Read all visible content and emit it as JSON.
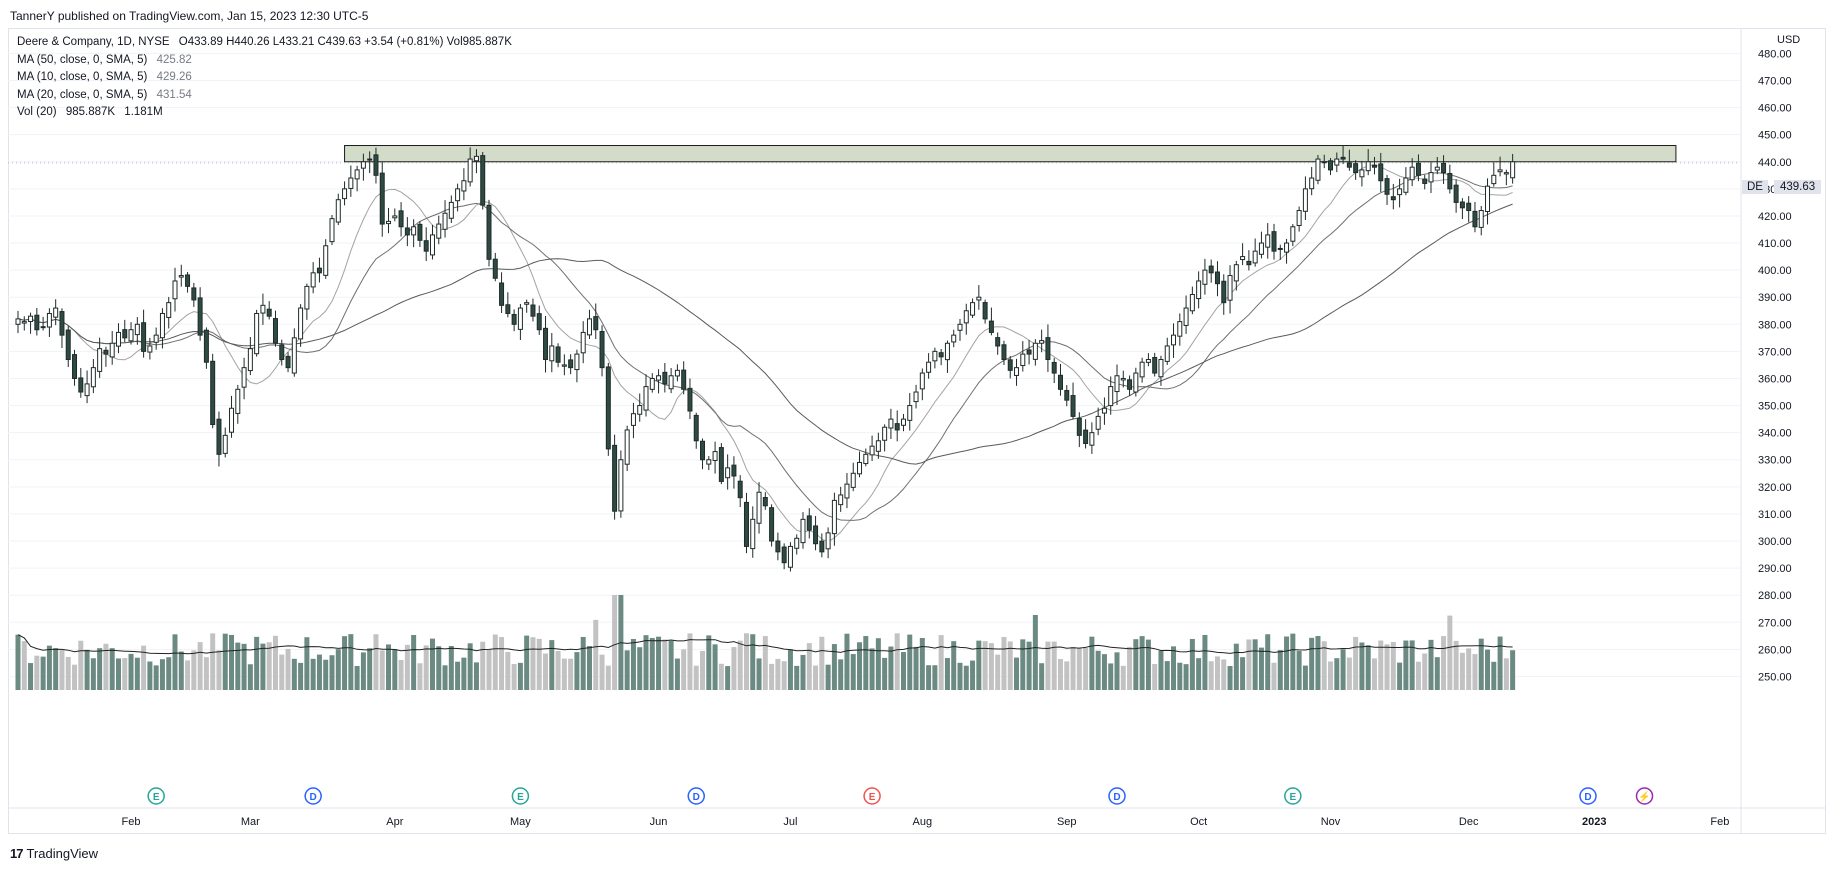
{
  "header": {
    "publisher": "TannerY published on TradingView.com, Jan 15, 2023 12:30 UTC-5"
  },
  "legend": {
    "title": "Deere & Company, 1D, NYSE",
    "ohlc": "O433.89  H440.26  L433.21  C439.63  +3.54 (+0.81%)  Vol985.887K",
    "ma50_label": "MA (50, close, 0, SMA, 5)",
    "ma50_value": "425.82",
    "ma10_label": "MA (10, close, 0, SMA, 5)",
    "ma10_value": "429.26",
    "ma20_label": "MA (20, close, 0, SMA, 5)",
    "ma20_value": "431.54",
    "vol_label": "Vol (20)",
    "vol_value1": "985.887K",
    "vol_value2": "1.181M"
  },
  "price_axis": {
    "currency": "USD",
    "symbol": "DE",
    "last_price": "439.63"
  },
  "footer": {
    "logo_text": "TradingView"
  },
  "colors": {
    "up": "#5b7b72",
    "down": "#2e4a43",
    "vol_up": "#6b8a82",
    "vol_down": "#c2c2c2",
    "zone_fill": "#d3dcc8",
    "zone_stroke": "#1a1a1a",
    "ma_line": "#7d7d7d"
  },
  "chart_data": {
    "type": "candlestick",
    "title": "Deere & Company, 1D, NYSE",
    "ylabel": "USD",
    "ylim": [
      245,
      482
    ],
    "y_ticks": [
      250,
      260,
      270,
      280,
      290,
      300,
      310,
      320,
      330,
      340,
      350,
      360,
      370,
      380,
      390,
      400,
      410,
      420,
      430,
      440,
      450,
      460,
      470,
      480
    ],
    "x_ticks": [
      {
        "label": "Feb",
        "index": 18
      },
      {
        "label": "Mar",
        "index": 37
      },
      {
        "label": "Apr",
        "index": 60
      },
      {
        "label": "May",
        "index": 80
      },
      {
        "label": "Jun",
        "index": 102
      },
      {
        "label": "Jul",
        "index": 123
      },
      {
        "label": "Aug",
        "index": 144
      },
      {
        "label": "Sep",
        "index": 167
      },
      {
        "label": "Oct",
        "index": 188
      },
      {
        "label": "Nov",
        "index": 209
      },
      {
        "label": "Dec",
        "index": 231
      },
      {
        "label": "2023",
        "index": 251
      },
      {
        "label": "Feb",
        "index": 271
      }
    ],
    "resistance_zone": {
      "low": 440,
      "high": 446,
      "start_index": 52,
      "end_index": 264
    },
    "closes": [
      382,
      381,
      383,
      378,
      379,
      384,
      386,
      376,
      367,
      360,
      355,
      358,
      364,
      371,
      369,
      373,
      377,
      375,
      378,
      380,
      370,
      372,
      376,
      384,
      388,
      396,
      398,
      394,
      389,
      376,
      366,
      343,
      332,
      339,
      349,
      356,
      364,
      371,
      384,
      387,
      383,
      373,
      367,
      364,
      375,
      386,
      394,
      399,
      399,
      409,
      419,
      426,
      430,
      434,
      437,
      440,
      441,
      435,
      417,
      418,
      420,
      416,
      413,
      416,
      411,
      407,
      413,
      417,
      421,
      425,
      430,
      433,
      441,
      442,
      424,
      404,
      397,
      387,
      384,
      380,
      386,
      388,
      383,
      378,
      367,
      372,
      366,
      365,
      364,
      369,
      377,
      382,
      378,
      364,
      334,
      311,
      330,
      341,
      347,
      350,
      357,
      360,
      361,
      358,
      361,
      363,
      356,
      348,
      337,
      330,
      330,
      333,
      322,
      327,
      324,
      316,
      298,
      308,
      318,
      313,
      300,
      296,
      292,
      298,
      301,
      308,
      304,
      299,
      296,
      303,
      315,
      317,
      321,
      325,
      329,
      332,
      335,
      337,
      342,
      345,
      341,
      345,
      350,
      355,
      362,
      366,
      370,
      368,
      373,
      376,
      380,
      385,
      388,
      390,
      382,
      377,
      372,
      367,
      363,
      364,
      369,
      369,
      373,
      374,
      367,
      362,
      356,
      352,
      346,
      339,
      336,
      340,
      346,
      349,
      357,
      361,
      360,
      356,
      362,
      366,
      367,
      362,
      367,
      372,
      376,
      381,
      386,
      391,
      396,
      400,
      399,
      395,
      388,
      398,
      402,
      405,
      402,
      407,
      410,
      413,
      407,
      408,
      410,
      416,
      422,
      430,
      434,
      441,
      440,
      437,
      441,
      441,
      438,
      436,
      437,
      440,
      438,
      433,
      428,
      426,
      430,
      434,
      438,
      435,
      432,
      436,
      438,
      436,
      430,
      425,
      423,
      422,
      416,
      422,
      431,
      435,
      437,
      436,
      440
    ],
    "volume_range": [
      0,
      3000000
    ],
    "volume_ma_note": "Vol (20)"
  }
}
